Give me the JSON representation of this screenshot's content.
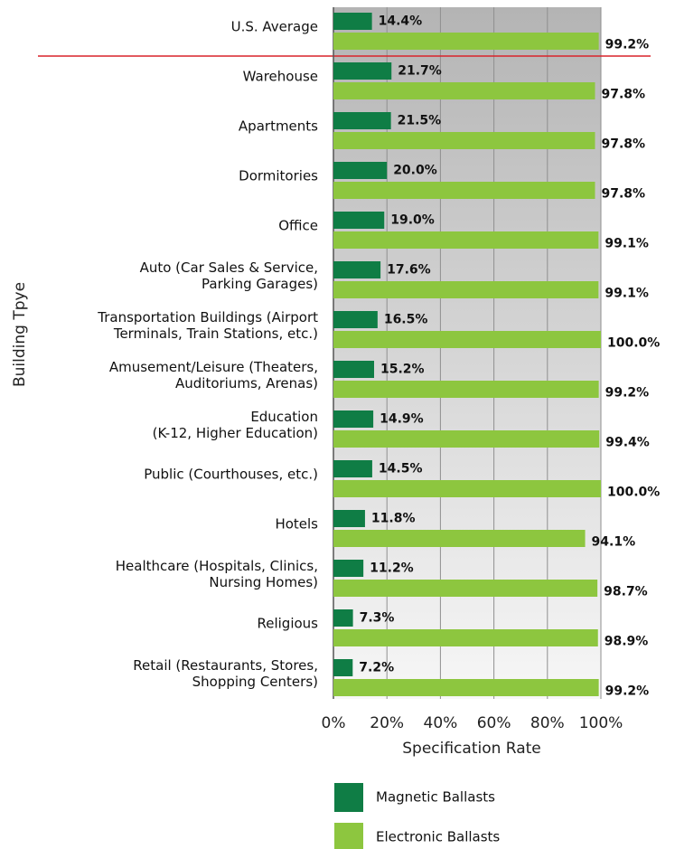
{
  "chart_data": {
    "type": "hbar",
    "categories": [
      "U.S. Average",
      "Warehouse",
      "Apartments",
      "Dormitories",
      "Office",
      "Auto (Car Sales & Service,\nParking Garages)",
      "Transportation Buildings (Airport\nTerminals, Train Stations, etc.)",
      "Amusement/Leisure (Theaters,\nAuditoriums, Arenas)",
      "Education\n(K-12, Higher Education)",
      "Public (Courthouses, etc.)",
      "Hotels",
      "Healthcare (Hospitals, Clinics,\nNursing Homes)",
      "Religious",
      "Retail (Restaurants, Stores,\nShopping Centers)"
    ],
    "series": [
      {
        "name": "Magnetic Ballasts",
        "color": "#0f7d45",
        "values": [
          14.4,
          21.7,
          21.5,
          20.0,
          19.0,
          17.6,
          16.5,
          15.2,
          14.9,
          14.5,
          11.8,
          11.2,
          7.3,
          7.2
        ],
        "value_labels": [
          "14.4%",
          "21.7%",
          "21.5%",
          "20.0%",
          "19.0%",
          "17.6%",
          "16.5%",
          "15.2%",
          "14.9%",
          "14.5%",
          "11.8%",
          "11.2%",
          "7.3%",
          "7.2%"
        ]
      },
      {
        "name": "Electronic Ballasts",
        "color": "#8dc63f",
        "values": [
          99.2,
          97.8,
          97.8,
          97.8,
          99.1,
          99.1,
          100.0,
          99.2,
          99.4,
          100.0,
          94.1,
          98.7,
          98.9,
          99.2
        ],
        "value_labels": [
          "99.2%",
          "97.8%",
          "97.8%",
          "97.8%",
          "99.1%",
          "99.1%",
          "100.0%",
          "99.2%",
          "99.4%",
          "100.0%",
          "94.1%",
          "98.7%",
          "98.9%",
          "99.2%"
        ]
      }
    ],
    "xlabel": "Specification Rate",
    "ylabel": "Building Tpye",
    "xlim": [
      0,
      100
    ],
    "xticks": [
      {
        "value": 0,
        "label": "0%"
      },
      {
        "value": 20,
        "label": "20%"
      },
      {
        "value": 40,
        "label": "40%"
      },
      {
        "value": 60,
        "label": "60%"
      },
      {
        "value": 80,
        "label": "80%"
      },
      {
        "value": 100,
        "label": "100%"
      }
    ],
    "grid": true
  }
}
